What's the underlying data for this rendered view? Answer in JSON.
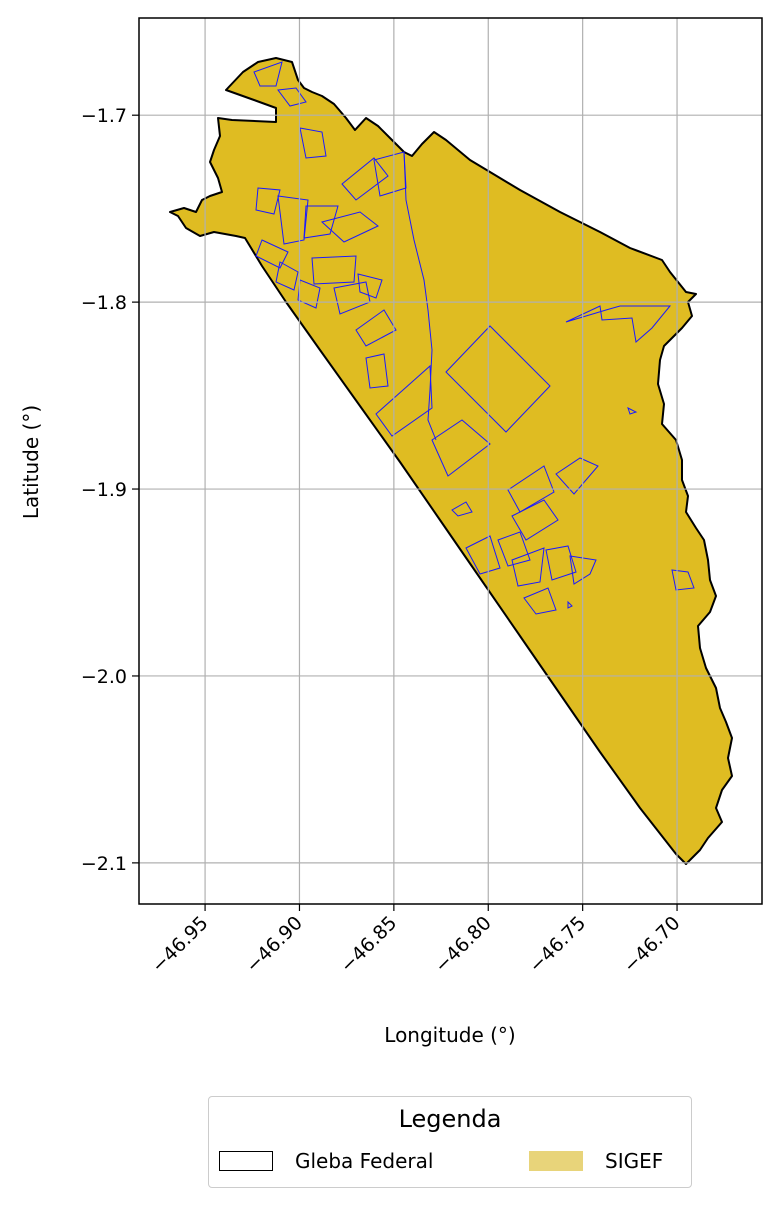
{
  "map": {
    "xlabel": "Longitude (°)",
    "ylabel": "Latitude (°)",
    "xlim": [
      -46.985,
      -46.655
    ],
    "ylim": [
      -2.122,
      -1.648
    ],
    "xticks": [
      -46.95,
      -46.9,
      -46.85,
      -46.8,
      -46.75,
      -46.7
    ],
    "xtick_labels": [
      "−46.95",
      "−46.90",
      "−46.85",
      "−46.80",
      "−46.75",
      "−46.70"
    ],
    "yticks": [
      -1.7,
      -1.8,
      -1.9,
      -2.0,
      -2.1
    ],
    "ytick_labels": [
      "−1.7",
      "−1.8",
      "−1.9",
      "−2.0",
      "−2.1"
    ],
    "grid": true,
    "colors": {
      "gleba_fill": "#dfbc22",
      "gleba_edge": "#000000",
      "sigef_edge": "#1a1aff",
      "grid": "#b0b0b0"
    }
  },
  "legend": {
    "title": "Legenda",
    "placement": "bottom-center",
    "items": [
      {
        "label": "Gleba Federal"
      },
      {
        "label": "SIGEF"
      }
    ]
  }
}
